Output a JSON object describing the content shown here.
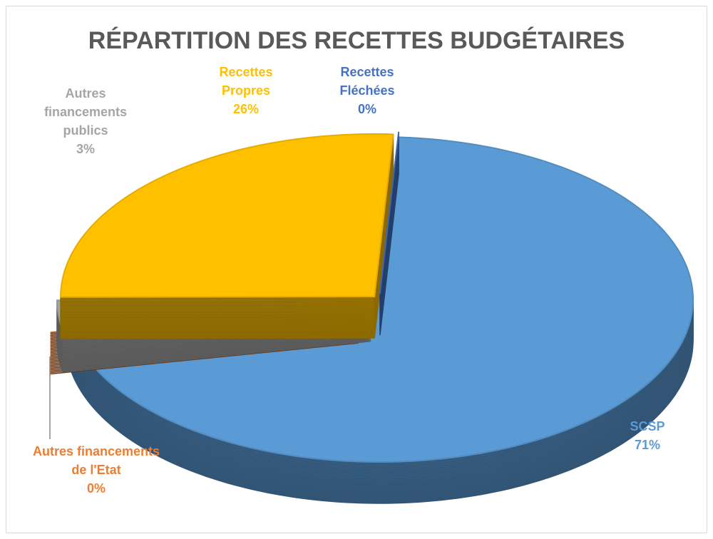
{
  "chart_data": {
    "type": "pie",
    "title": "RÉPARTITION DES RECETTES BUDGÉTAIRES",
    "categories": [
      "SCSP",
      "Autres financements de l'Etat",
      "Autres financements publics",
      "Recettes Propres",
      "Recettes Fléchées"
    ],
    "values": [
      71,
      0,
      3,
      26,
      0
    ],
    "value_labels": [
      "71%",
      "0%",
      "3%",
      "26%",
      "0%"
    ],
    "colors": [
      "#5b9bd5",
      "#c55a11",
      "#a5a5a5",
      "#ffc000",
      "#4472c4"
    ]
  }
}
